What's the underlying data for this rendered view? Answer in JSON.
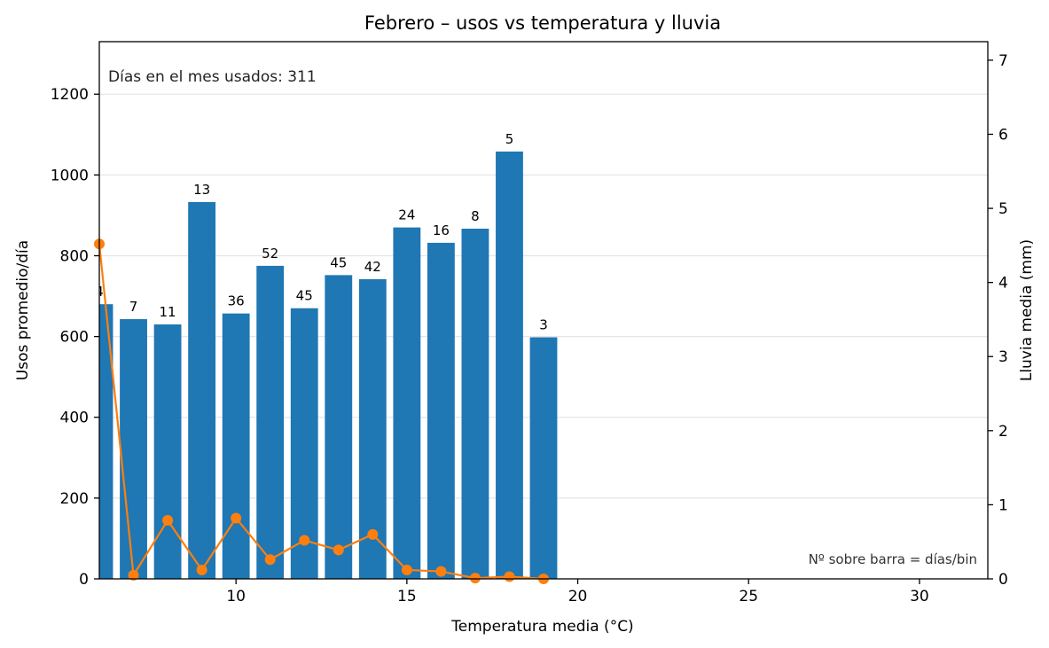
{
  "chart_data": {
    "type": "bar",
    "title": "Febrero – usos vs temperatura y lluvia",
    "xlabel": "Temperatura media (°C)",
    "ylabel": "Usos promedio/día",
    "y2label": "Lluvia media (mm)",
    "xlim": [
      6,
      32
    ],
    "ylim": [
      0,
      1330
    ],
    "y2lim": [
      0,
      7.25
    ],
    "xticks": [
      10,
      15,
      20,
      25,
      30
    ],
    "yticks": [
      0,
      200,
      400,
      600,
      800,
      1000,
      1200
    ],
    "y2ticks": [
      0,
      1,
      2,
      3,
      4,
      5,
      6,
      7
    ],
    "grid": "horizontal",
    "bar_color": "#1f77b4",
    "line_color": "#ff7f0e",
    "series": [
      {
        "kind": "bar",
        "axis": "left",
        "x": [
          6,
          7,
          8,
          9,
          10,
          11,
          12,
          13,
          14,
          15,
          16,
          17,
          18,
          19
        ],
        "values": [
          680,
          643,
          630,
          933,
          657,
          775,
          670,
          752,
          742,
          870,
          832,
          867,
          1058,
          598
        ],
        "labels": [
          "4",
          "7",
          "11",
          "13",
          "36",
          "52",
          "45",
          "45",
          "42",
          "24",
          "16",
          "8",
          "5",
          "3"
        ]
      },
      {
        "kind": "line",
        "axis": "right",
        "x": [
          6,
          7,
          8,
          9,
          10,
          11,
          12,
          13,
          14,
          15,
          16,
          17,
          18,
          19
        ],
        "values": [
          4.52,
          0.05,
          0.79,
          0.12,
          0.82,
          0.26,
          0.52,
          0.39,
          0.6,
          0.12,
          0.1,
          0.01,
          0.03,
          0.0
        ]
      }
    ],
    "annotations": {
      "days_used": "Días en el mes usados: 311",
      "bar_note": "Nº sobre barra = días/bin"
    }
  }
}
